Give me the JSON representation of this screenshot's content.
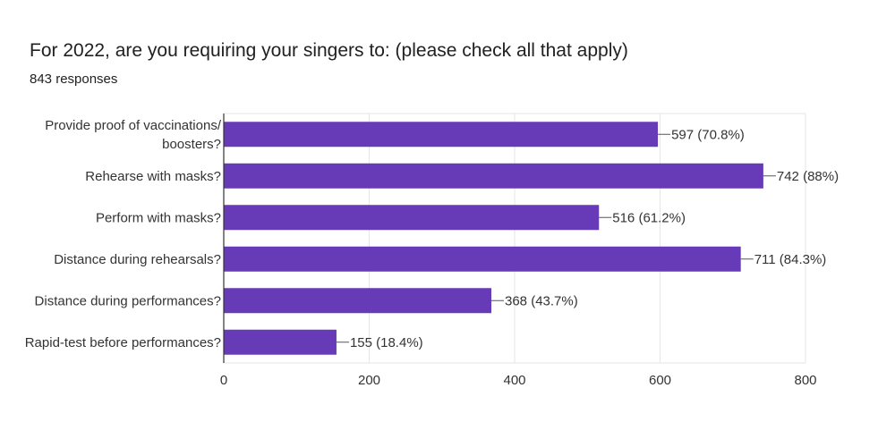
{
  "header": {
    "title": "For 2022, are you requiring your singers to: (please check all that apply)",
    "subtitle": "843 responses"
  },
  "colors": {
    "bar": "#673AB7",
    "grid": "#e6e6e6",
    "axis": "#333333",
    "text": "#212121"
  },
  "chart_data": {
    "type": "bar",
    "orientation": "horizontal",
    "title": "For 2022, are you requiring your singers to: (please check all that apply)",
    "subtitle": "843 responses",
    "categories": [
      [
        "Provide proof of vaccinations/",
        "boosters?"
      ],
      [
        "Rehearse with masks?"
      ],
      [
        "Perform with masks?"
      ],
      [
        "Distance during rehearsals?"
      ],
      [
        "Distance during performances?"
      ],
      [
        "Rapid-test before performances?"
      ]
    ],
    "values": [
      597,
      742,
      516,
      711,
      368,
      155
    ],
    "data_labels": [
      "597 (70.8%)",
      "742 (88%)",
      "516 (61.2%)",
      "711 (84.3%)",
      "368 (43.7%)",
      "155 (18.4%)"
    ],
    "xlim": [
      0,
      800
    ],
    "xticks": [
      0,
      200,
      400,
      600,
      800
    ],
    "xtick_labels": [
      "0",
      "200",
      "400",
      "600",
      "800"
    ],
    "grid": true,
    "legend": "none"
  }
}
